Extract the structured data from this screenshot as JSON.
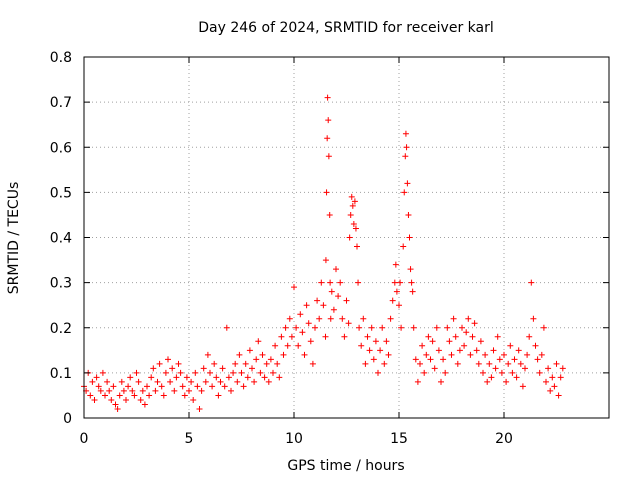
{
  "chart_data": {
    "type": "scatter",
    "title": "Day 246 of 2024, SRMTID for receiver karl",
    "xlabel": "GPS time / hours",
    "ylabel": "SRMTID / TECUs",
    "xlim": [
      0,
      25
    ],
    "ylim": [
      0,
      0.8
    ],
    "xticks": [
      0,
      5,
      10,
      15,
      20
    ],
    "yticks": [
      0,
      0.1,
      0.2,
      0.3,
      0.4,
      0.5,
      0.6,
      0.7,
      0.8
    ],
    "grid": true,
    "marker": "plus",
    "color": "#ff0000",
    "series": [
      {
        "name": "SRMTID",
        "points": [
          [
            0.0,
            0.07
          ],
          [
            0.1,
            0.06
          ],
          [
            0.2,
            0.1
          ],
          [
            0.3,
            0.05
          ],
          [
            0.4,
            0.08
          ],
          [
            0.5,
            0.04
          ],
          [
            0.6,
            0.09
          ],
          [
            0.7,
            0.07
          ],
          [
            0.8,
            0.06
          ],
          [
            0.9,
            0.1
          ],
          [
            1.0,
            0.05
          ],
          [
            1.1,
            0.08
          ],
          [
            1.2,
            0.06
          ],
          [
            1.3,
            0.04
          ],
          [
            1.4,
            0.07
          ],
          [
            1.5,
            0.03
          ],
          [
            1.6,
            0.02
          ],
          [
            1.7,
            0.05
          ],
          [
            1.8,
            0.08
          ],
          [
            1.9,
            0.06
          ],
          [
            2.0,
            0.04
          ],
          [
            2.1,
            0.07
          ],
          [
            2.2,
            0.09
          ],
          [
            2.3,
            0.06
          ],
          [
            2.4,
            0.05
          ],
          [
            2.5,
            0.1
          ],
          [
            2.6,
            0.08
          ],
          [
            2.7,
            0.04
          ],
          [
            2.8,
            0.06
          ],
          [
            2.9,
            0.03
          ],
          [
            3.0,
            0.07
          ],
          [
            3.1,
            0.05
          ],
          [
            3.2,
            0.09
          ],
          [
            3.3,
            0.11
          ],
          [
            3.4,
            0.06
          ],
          [
            3.5,
            0.08
          ],
          [
            3.6,
            0.12
          ],
          [
            3.7,
            0.07
          ],
          [
            3.8,
            0.05
          ],
          [
            3.9,
            0.1
          ],
          [
            4.0,
            0.13
          ],
          [
            4.1,
            0.08
          ],
          [
            4.2,
            0.11
          ],
          [
            4.3,
            0.06
          ],
          [
            4.4,
            0.09
          ],
          [
            4.5,
            0.12
          ],
          [
            4.6,
            0.1
          ],
          [
            4.7,
            0.07
          ],
          [
            4.8,
            0.05
          ],
          [
            4.9,
            0.09
          ],
          [
            5.0,
            0.06
          ],
          [
            5.1,
            0.08
          ],
          [
            5.2,
            0.04
          ],
          [
            5.3,
            0.1
          ],
          [
            5.4,
            0.07
          ],
          [
            5.5,
            0.02
          ],
          [
            5.6,
            0.06
          ],
          [
            5.7,
            0.11
          ],
          [
            5.8,
            0.08
          ],
          [
            5.9,
            0.14
          ],
          [
            6.0,
            0.1
          ],
          [
            6.1,
            0.07
          ],
          [
            6.2,
            0.12
          ],
          [
            6.3,
            0.09
          ],
          [
            6.4,
            0.05
          ],
          [
            6.5,
            0.08
          ],
          [
            6.6,
            0.11
          ],
          [
            6.7,
            0.07
          ],
          [
            6.8,
            0.2
          ],
          [
            6.9,
            0.09
          ],
          [
            7.0,
            0.06
          ],
          [
            7.1,
            0.1
          ],
          [
            7.2,
            0.12
          ],
          [
            7.3,
            0.08
          ],
          [
            7.4,
            0.14
          ],
          [
            7.5,
            0.1
          ],
          [
            7.6,
            0.07
          ],
          [
            7.7,
            0.12
          ],
          [
            7.8,
            0.09
          ],
          [
            7.9,
            0.15
          ],
          [
            8.0,
            0.11
          ],
          [
            8.1,
            0.08
          ],
          [
            8.2,
            0.13
          ],
          [
            8.3,
            0.17
          ],
          [
            8.4,
            0.1
          ],
          [
            8.5,
            0.14
          ],
          [
            8.6,
            0.09
          ],
          [
            8.7,
            0.12
          ],
          [
            8.8,
            0.08
          ],
          [
            8.9,
            0.13
          ],
          [
            9.0,
            0.1
          ],
          [
            9.1,
            0.16
          ],
          [
            9.2,
            0.12
          ],
          [
            9.3,
            0.09
          ],
          [
            9.4,
            0.18
          ],
          [
            9.5,
            0.14
          ],
          [
            9.6,
            0.2
          ],
          [
            9.7,
            0.16
          ],
          [
            9.8,
            0.22
          ],
          [
            9.9,
            0.18
          ],
          [
            10.0,
            0.29
          ],
          [
            10.1,
            0.2
          ],
          [
            10.2,
            0.16
          ],
          [
            10.3,
            0.23
          ],
          [
            10.4,
            0.19
          ],
          [
            10.5,
            0.14
          ],
          [
            10.6,
            0.25
          ],
          [
            10.7,
            0.21
          ],
          [
            10.8,
            0.17
          ],
          [
            10.9,
            0.12
          ],
          [
            11.0,
            0.2
          ],
          [
            11.1,
            0.26
          ],
          [
            11.2,
            0.22
          ],
          [
            11.3,
            0.3
          ],
          [
            11.4,
            0.25
          ],
          [
            11.5,
            0.18
          ],
          [
            11.52,
            0.35
          ],
          [
            11.55,
            0.5
          ],
          [
            11.58,
            0.62
          ],
          [
            11.6,
            0.71
          ],
          [
            11.63,
            0.66
          ],
          [
            11.66,
            0.58
          ],
          [
            11.7,
            0.45
          ],
          [
            11.72,
            0.3
          ],
          [
            11.75,
            0.22
          ],
          [
            11.8,
            0.28
          ],
          [
            11.9,
            0.24
          ],
          [
            12.0,
            0.33
          ],
          [
            12.1,
            0.27
          ],
          [
            12.2,
            0.3
          ],
          [
            12.3,
            0.22
          ],
          [
            12.4,
            0.18
          ],
          [
            12.5,
            0.26
          ],
          [
            12.6,
            0.21
          ],
          [
            12.65,
            0.4
          ],
          [
            12.7,
            0.45
          ],
          [
            12.75,
            0.49
          ],
          [
            12.8,
            0.47
          ],
          [
            12.85,
            0.43
          ],
          [
            12.9,
            0.48
          ],
          [
            12.95,
            0.42
          ],
          [
            13.0,
            0.38
          ],
          [
            13.05,
            0.3
          ],
          [
            13.1,
            0.2
          ],
          [
            13.2,
            0.16
          ],
          [
            13.3,
            0.22
          ],
          [
            13.4,
            0.12
          ],
          [
            13.5,
            0.18
          ],
          [
            13.6,
            0.15
          ],
          [
            13.7,
            0.2
          ],
          [
            13.8,
            0.13
          ],
          [
            13.9,
            0.17
          ],
          [
            14.0,
            0.1
          ],
          [
            14.1,
            0.15
          ],
          [
            14.2,
            0.2
          ],
          [
            14.3,
            0.12
          ],
          [
            14.4,
            0.17
          ],
          [
            14.5,
            0.14
          ],
          [
            14.6,
            0.22
          ],
          [
            14.7,
            0.26
          ],
          [
            14.8,
            0.3
          ],
          [
            14.85,
            0.34
          ],
          [
            14.9,
            0.28
          ],
          [
            15.0,
            0.25
          ],
          [
            15.05,
            0.3
          ],
          [
            15.1,
            0.2
          ],
          [
            15.2,
            0.38
          ],
          [
            15.25,
            0.5
          ],
          [
            15.3,
            0.58
          ],
          [
            15.33,
            0.63
          ],
          [
            15.36,
            0.6
          ],
          [
            15.4,
            0.52
          ],
          [
            15.45,
            0.45
          ],
          [
            15.5,
            0.4
          ],
          [
            15.55,
            0.33
          ],
          [
            15.6,
            0.3
          ],
          [
            15.65,
            0.28
          ],
          [
            15.7,
            0.2
          ],
          [
            15.8,
            0.13
          ],
          [
            15.9,
            0.08
          ],
          [
            16.0,
            0.12
          ],
          [
            16.1,
            0.16
          ],
          [
            16.2,
            0.1
          ],
          [
            16.3,
            0.14
          ],
          [
            16.4,
            0.18
          ],
          [
            16.5,
            0.13
          ],
          [
            16.6,
            0.17
          ],
          [
            16.7,
            0.11
          ],
          [
            16.8,
            0.2
          ],
          [
            16.9,
            0.15
          ],
          [
            17.0,
            0.08
          ],
          [
            17.1,
            0.13
          ],
          [
            17.2,
            0.1
          ],
          [
            17.3,
            0.2
          ],
          [
            17.4,
            0.17
          ],
          [
            17.5,
            0.14
          ],
          [
            17.6,
            0.22
          ],
          [
            17.7,
            0.18
          ],
          [
            17.8,
            0.12
          ],
          [
            17.9,
            0.15
          ],
          [
            18.0,
            0.2
          ],
          [
            18.1,
            0.16
          ],
          [
            18.2,
            0.19
          ],
          [
            18.3,
            0.22
          ],
          [
            18.4,
            0.14
          ],
          [
            18.5,
            0.18
          ],
          [
            18.6,
            0.21
          ],
          [
            18.7,
            0.15
          ],
          [
            18.8,
            0.12
          ],
          [
            18.9,
            0.17
          ],
          [
            19.0,
            0.1
          ],
          [
            19.1,
            0.14
          ],
          [
            19.2,
            0.08
          ],
          [
            19.3,
            0.12
          ],
          [
            19.4,
            0.09
          ],
          [
            19.5,
            0.15
          ],
          [
            19.6,
            0.11
          ],
          [
            19.7,
            0.18
          ],
          [
            19.8,
            0.13
          ],
          [
            19.9,
            0.1
          ],
          [
            20.0,
            0.14
          ],
          [
            20.1,
            0.08
          ],
          [
            20.2,
            0.12
          ],
          [
            20.3,
            0.16
          ],
          [
            20.4,
            0.1
          ],
          [
            20.5,
            0.13
          ],
          [
            20.6,
            0.09
          ],
          [
            20.7,
            0.15
          ],
          [
            20.8,
            0.12
          ],
          [
            20.9,
            0.07
          ],
          [
            21.0,
            0.11
          ],
          [
            21.1,
            0.14
          ],
          [
            21.2,
            0.18
          ],
          [
            21.3,
            0.3
          ],
          [
            21.4,
            0.22
          ],
          [
            21.5,
            0.16
          ],
          [
            21.6,
            0.13
          ],
          [
            21.7,
            0.1
          ],
          [
            21.8,
            0.14
          ],
          [
            21.9,
            0.2
          ],
          [
            22.0,
            0.08
          ],
          [
            22.1,
            0.11
          ],
          [
            22.2,
            0.06
          ],
          [
            22.3,
            0.09
          ],
          [
            22.4,
            0.07
          ],
          [
            22.5,
            0.12
          ],
          [
            22.6,
            0.05
          ],
          [
            22.7,
            0.09
          ],
          [
            22.8,
            0.11
          ]
        ]
      }
    ]
  }
}
